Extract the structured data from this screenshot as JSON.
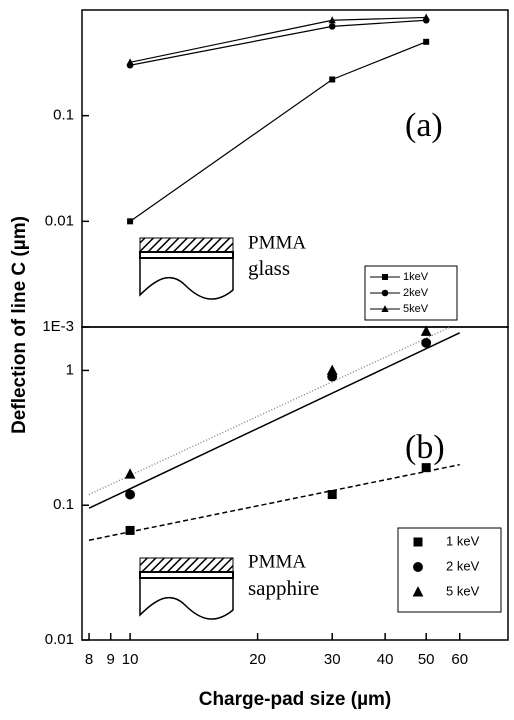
{
  "chart_data": [
    {
      "type": "line",
      "label": "(a)",
      "ylabel": "Deflection of line C (µm)",
      "inset_top": "PMMA",
      "inset_bottom": "glass",
      "log_x": true,
      "log_y": true,
      "xlim": [
        7.7,
        78
      ],
      "ylim": [
        0.001,
        1
      ],
      "yticks": [
        {
          "value": 0.001,
          "label": "1E-3"
        },
        0.01,
        0.1
      ],
      "series": [
        {
          "name": "1keV",
          "marker": "square",
          "x": [
            10,
            30,
            50
          ],
          "values": [
            0.01,
            0.22,
            0.5
          ]
        },
        {
          "name": "2keV",
          "marker": "circle",
          "x": [
            10,
            30,
            50
          ],
          "values": [
            0.3,
            0.7,
            0.8
          ]
        },
        {
          "name": "5keV",
          "marker": "triangle",
          "x": [
            10,
            30,
            50
          ],
          "values": [
            0.32,
            0.8,
            0.85
          ]
        }
      ]
    },
    {
      "type": "scatter",
      "label": "(b)",
      "xlabel": "Charge-pad size (µm)",
      "inset_top": "PMMA",
      "inset_bottom": "sapphire",
      "log_x": true,
      "log_y": true,
      "xlim": [
        7.7,
        78
      ],
      "ylim": [
        0.01,
        2.1
      ],
      "xticks": [
        8,
        9,
        10,
        20,
        30,
        40,
        50,
        60
      ],
      "yticks": [
        0.01,
        0.1,
        1
      ],
      "series": [
        {
          "name": "1 keV",
          "marker": "square",
          "x": [
            10,
            30,
            50
          ],
          "values": [
            0.065,
            0.12,
            0.19
          ]
        },
        {
          "name": "2 keV",
          "marker": "circle",
          "x": [
            10,
            30,
            50
          ],
          "values": [
            0.12,
            0.9,
            1.6
          ]
        },
        {
          "name": "5 keV",
          "marker": "triangle",
          "x": [
            10,
            30,
            50
          ],
          "values": [
            0.17,
            1.0,
            1.95
          ]
        }
      ],
      "fits": [
        {
          "dash": "5 3",
          "color": "#000000",
          "x": [
            8,
            60
          ],
          "values": [
            0.055,
            0.2
          ]
        },
        {
          "dash": "",
          "color": "#000000",
          "x": [
            8,
            60
          ],
          "values": [
            0.095,
            1.9
          ]
        },
        {
          "dash": "1 2",
          "color": "#888888",
          "x": [
            8,
            57
          ],
          "values": [
            0.12,
            2.1
          ]
        }
      ]
    }
  ]
}
